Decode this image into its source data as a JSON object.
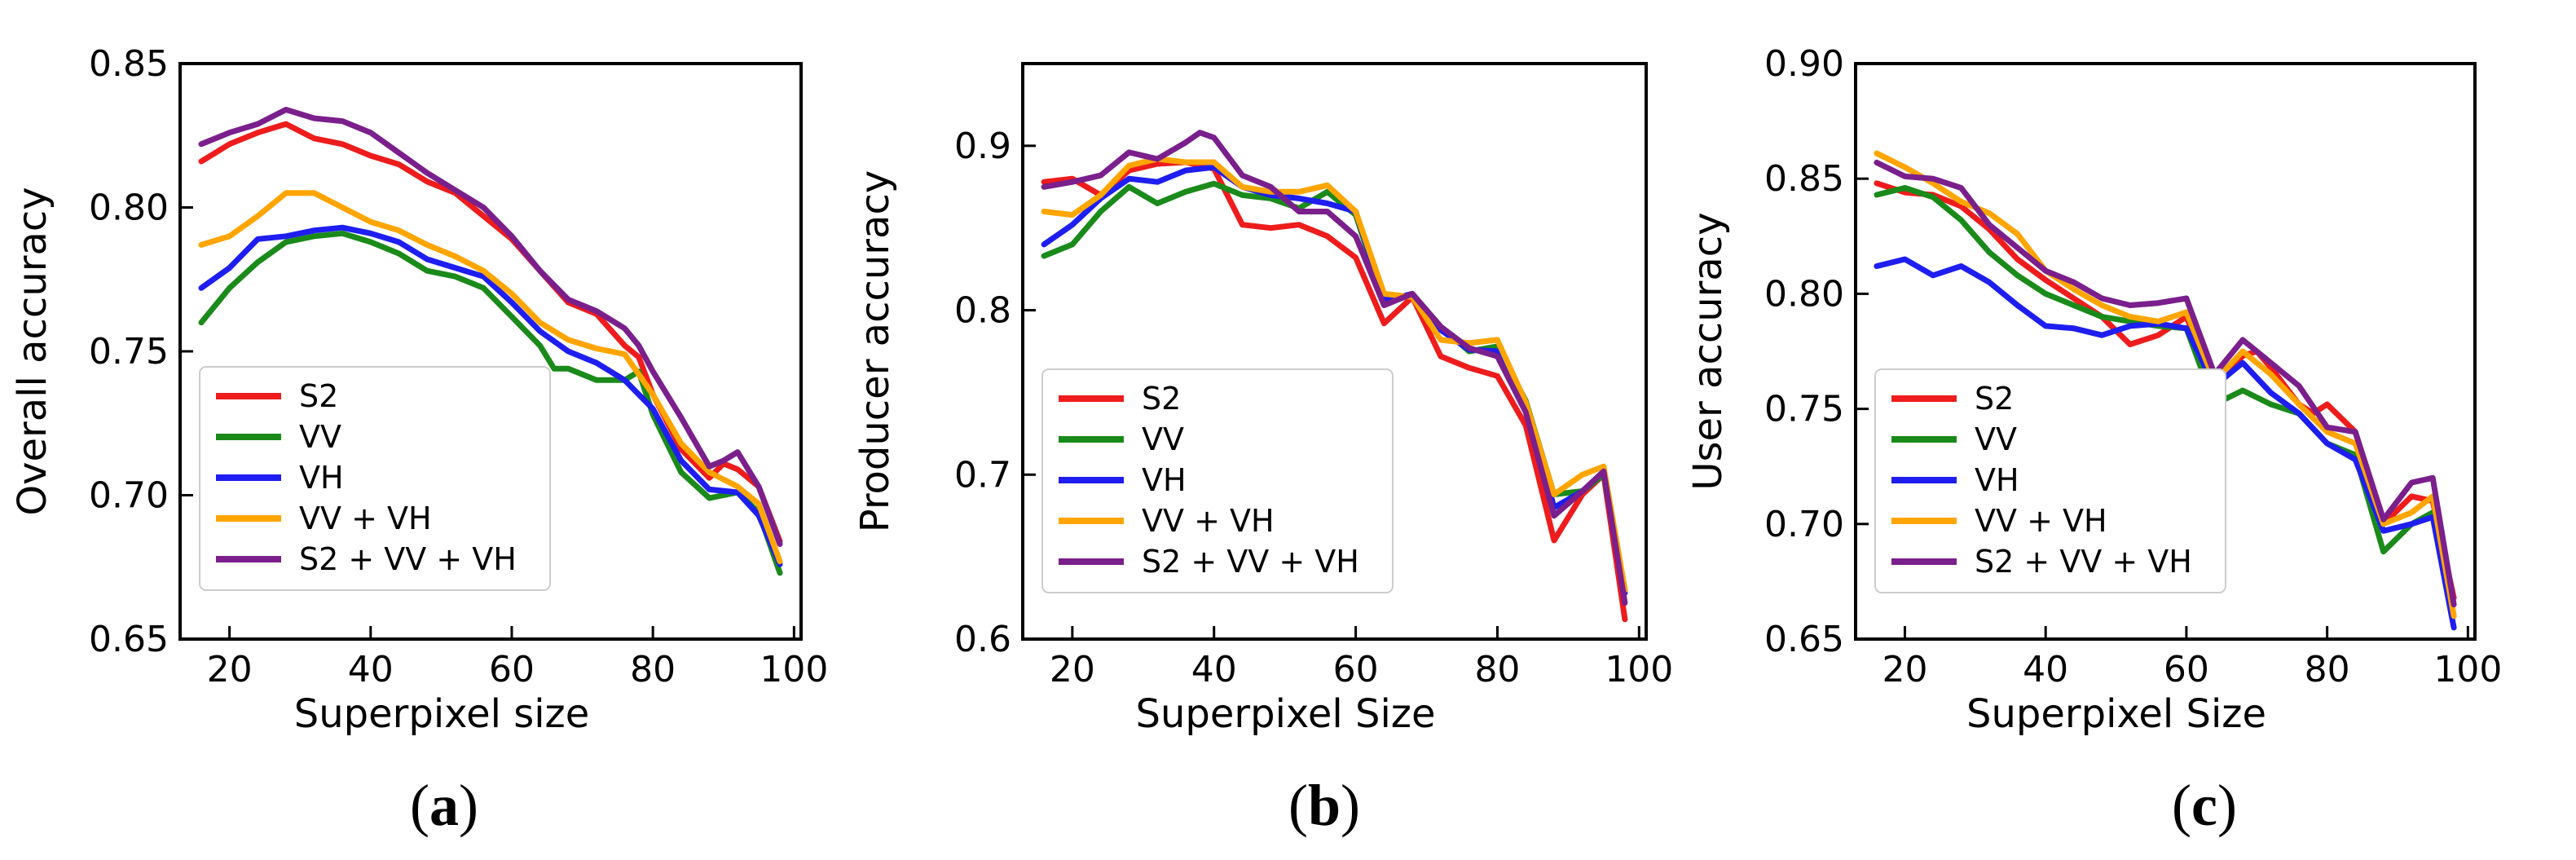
{
  "legend": [
    "S2",
    "VV",
    "VH",
    "VV + VH",
    "S2 + VV + VH"
  ],
  "colors": {
    "S2": "#ee1c1c",
    "VV": "#1a8a1a",
    "VH": "#1e1ef0",
    "VV + VH": "#ffa500",
    "S2 + VV + VH": "#7a1f8c"
  },
  "panels": [
    {
      "open": "(",
      "letter": "a",
      "close": ")",
      "chart_data": {
        "type": "line",
        "xlabel": "Superpixel size",
        "ylabel": "Overall accuracy",
        "xlim": [
          13,
          101
        ],
        "ylim": [
          0.65,
          0.85
        ],
        "xticks": [
          20,
          40,
          60,
          80,
          100
        ],
        "yticks": [
          0.65,
          0.7,
          0.75,
          0.8,
          0.85
        ],
        "ytick_labels": [
          "0.65",
          "0.70",
          "0.75",
          "0.80",
          "0.85"
        ],
        "legend_position": "lower-left",
        "series": [
          {
            "name": "S2",
            "x": [
              16,
              20,
              24,
              28,
              32,
              36,
              40,
              44,
              48,
              52,
              56,
              60,
              64,
              68,
              72,
              76,
              78,
              80,
              84,
              88,
              90,
              92,
              95,
              98
            ],
            "values": [
              0.816,
              0.822,
              0.826,
              0.829,
              0.824,
              0.822,
              0.818,
              0.815,
              0.809,
              0.805,
              0.797,
              0.789,
              0.778,
              0.767,
              0.763,
              0.752,
              0.748,
              0.735,
              0.716,
              0.706,
              0.711,
              0.709,
              0.703,
              0.684
            ]
          },
          {
            "name": "VV",
            "x": [
              16,
              20,
              24,
              28,
              32,
              36,
              40,
              44,
              48,
              52,
              56,
              60,
              64,
              66,
              68,
              72,
              76,
              78,
              80,
              84,
              88,
              92,
              95,
              98
            ],
            "values": [
              0.76,
              0.772,
              0.781,
              0.788,
              0.79,
              0.791,
              0.788,
              0.784,
              0.778,
              0.776,
              0.772,
              0.762,
              0.752,
              0.744,
              0.744,
              0.74,
              0.74,
              0.743,
              0.728,
              0.708,
              0.699,
              0.701,
              0.694,
              0.673
            ]
          },
          {
            "name": "VH",
            "x": [
              16,
              20,
              24,
              28,
              32,
              36,
              40,
              44,
              48,
              52,
              56,
              60,
              64,
              68,
              72,
              76,
              80,
              84,
              88,
              92,
              95,
              98
            ],
            "values": [
              0.772,
              0.779,
              0.789,
              0.79,
              0.792,
              0.793,
              0.791,
              0.788,
              0.782,
              0.779,
              0.776,
              0.767,
              0.757,
              0.75,
              0.746,
              0.74,
              0.73,
              0.712,
              0.702,
              0.701,
              0.693,
              0.676
            ]
          },
          {
            "name": "VV + VH",
            "x": [
              16,
              20,
              24,
              28,
              32,
              36,
              40,
              44,
              48,
              52,
              56,
              60,
              64,
              68,
              72,
              76,
              80,
              84,
              88,
              92,
              95,
              98
            ],
            "values": [
              0.787,
              0.79,
              0.797,
              0.805,
              0.805,
              0.8,
              0.795,
              0.792,
              0.787,
              0.783,
              0.778,
              0.77,
              0.76,
              0.754,
              0.751,
              0.749,
              0.735,
              0.718,
              0.708,
              0.703,
              0.697,
              0.677
            ]
          },
          {
            "name": "S2 + VV + VH",
            "x": [
              16,
              20,
              24,
              28,
              32,
              36,
              40,
              44,
              48,
              52,
              56,
              60,
              64,
              68,
              72,
              76,
              78,
              80,
              84,
              88,
              90,
              92,
              95,
              98
            ],
            "values": [
              0.822,
              0.826,
              0.829,
              0.834,
              0.831,
              0.83,
              0.826,
              0.819,
              0.812,
              0.806,
              0.8,
              0.79,
              0.778,
              0.768,
              0.764,
              0.758,
              0.752,
              0.743,
              0.727,
              0.71,
              0.712,
              0.715,
              0.703,
              0.683
            ]
          }
        ]
      }
    },
    {
      "open": "(",
      "letter": "b",
      "close": ")",
      "chart_data": {
        "type": "line",
        "xlabel": "Superpixel Size",
        "ylabel": "Producer accuracy",
        "xlim": [
          13,
          101
        ],
        "ylim": [
          0.6,
          0.95
        ],
        "xticks": [
          20,
          40,
          60,
          80,
          100
        ],
        "yticks": [
          0.6,
          0.7,
          0.8,
          0.9
        ],
        "ytick_labels": [
          "0.6",
          "0.7",
          "0.8",
          "0.9"
        ],
        "legend_position": "lower-left",
        "series": [
          {
            "name": "S2",
            "x": [
              16,
              20,
              24,
              28,
              32,
              36,
              40,
              44,
              48,
              52,
              56,
              60,
              64,
              68,
              72,
              76,
              80,
              84,
              88,
              92,
              95,
              98
            ],
            "values": [
              0.878,
              0.88,
              0.87,
              0.885,
              0.889,
              0.89,
              0.886,
              0.852,
              0.85,
              0.852,
              0.845,
              0.832,
              0.792,
              0.808,
              0.772,
              0.765,
              0.76,
              0.73,
              0.66,
              0.688,
              0.7,
              0.612
            ]
          },
          {
            "name": "VV",
            "x": [
              16,
              20,
              24,
              28,
              32,
              36,
              40,
              44,
              48,
              52,
              56,
              60,
              64,
              68,
              72,
              76,
              80,
              84,
              88,
              92,
              95,
              98
            ],
            "values": [
              0.833,
              0.84,
              0.86,
              0.875,
              0.865,
              0.872,
              0.877,
              0.87,
              0.868,
              0.862,
              0.872,
              0.858,
              0.805,
              0.81,
              0.79,
              0.775,
              0.778,
              0.745,
              0.688,
              0.69,
              0.7,
              0.63
            ]
          },
          {
            "name": "VH",
            "x": [
              16,
              20,
              24,
              28,
              32,
              36,
              40,
              44,
              48,
              52,
              56,
              60,
              64,
              68,
              72,
              76,
              80,
              84,
              88,
              92,
              95,
              98
            ],
            "values": [
              0.84,
              0.852,
              0.868,
              0.88,
              0.878,
              0.885,
              0.887,
              0.875,
              0.87,
              0.868,
              0.865,
              0.86,
              0.806,
              0.81,
              0.788,
              0.776,
              0.775,
              0.744,
              0.68,
              0.69,
              0.702,
              0.628
            ]
          },
          {
            "name": "VV + VH",
            "x": [
              16,
              20,
              24,
              28,
              32,
              36,
              40,
              44,
              48,
              52,
              56,
              60,
              64,
              68,
              72,
              76,
              80,
              84,
              88,
              92,
              95,
              98
            ],
            "values": [
              0.86,
              0.858,
              0.87,
              0.888,
              0.892,
              0.89,
              0.89,
              0.875,
              0.872,
              0.872,
              0.876,
              0.86,
              0.81,
              0.808,
              0.782,
              0.78,
              0.782,
              0.744,
              0.688,
              0.7,
              0.705,
              0.63
            ]
          },
          {
            "name": "S2 + VV + VH",
            "x": [
              16,
              20,
              24,
              28,
              32,
              36,
              38,
              40,
              44,
              48,
              52,
              56,
              60,
              64,
              68,
              72,
              76,
              80,
              84,
              88,
              92,
              95,
              98
            ],
            "values": [
              0.875,
              0.878,
              0.882,
              0.896,
              0.892,
              0.902,
              0.908,
              0.905,
              0.882,
              0.875,
              0.86,
              0.86,
              0.845,
              0.803,
              0.81,
              0.79,
              0.777,
              0.772,
              0.738,
              0.675,
              0.69,
              0.702,
              0.622
            ]
          }
        ]
      }
    },
    {
      "open": "(",
      "letter": "c",
      "close": ")",
      "chart_data": {
        "type": "line",
        "xlabel": "Superpixel Size",
        "ylabel": "User accuracy",
        "xlim": [
          13,
          101
        ],
        "ylim": [
          0.65,
          0.9
        ],
        "xticks": [
          20,
          40,
          60,
          80,
          100
        ],
        "yticks": [
          0.65,
          0.7,
          0.75,
          0.8,
          0.85,
          0.9
        ],
        "ytick_labels": [
          "0.65",
          "0.70",
          "0.75",
          "0.80",
          "0.85",
          "0.90"
        ],
        "legend_position": "lower-left",
        "series": [
          {
            "name": "S2",
            "x": [
              16,
              20,
              24,
              28,
              32,
              36,
              40,
              44,
              48,
              52,
              56,
              60,
              64,
              68,
              70,
              72,
              76,
              78,
              80,
              84,
              88,
              92,
              95,
              98
            ],
            "values": [
              0.848,
              0.844,
              0.843,
              0.838,
              0.828,
              0.815,
              0.806,
              0.798,
              0.79,
              0.778,
              0.782,
              0.79,
              0.76,
              0.773,
              0.775,
              0.768,
              0.752,
              0.748,
              0.752,
              0.74,
              0.7,
              0.712,
              0.71,
              0.668
            ]
          },
          {
            "name": "VV",
            "x": [
              16,
              20,
              24,
              28,
              32,
              36,
              40,
              44,
              48,
              52,
              56,
              60,
              64,
              68,
              72,
              76,
              80,
              84,
              88,
              92,
              95,
              98
            ],
            "values": [
              0.843,
              0.846,
              0.842,
              0.832,
              0.818,
              0.808,
              0.8,
              0.795,
              0.79,
              0.788,
              0.786,
              0.785,
              0.752,
              0.758,
              0.752,
              0.748,
              0.735,
              0.73,
              0.688,
              0.7,
              0.705,
              0.66
            ]
          },
          {
            "name": "VH",
            "x": [
              16,
              20,
              24,
              28,
              32,
              36,
              40,
              44,
              48,
              52,
              56,
              60,
              64,
              68,
              72,
              76,
              80,
              84,
              88,
              92,
              95,
              98
            ],
            "values": [
              0.812,
              0.815,
              0.808,
              0.812,
              0.805,
              0.795,
              0.786,
              0.785,
              0.782,
              0.786,
              0.787,
              0.785,
              0.76,
              0.77,
              0.757,
              0.748,
              0.735,
              0.728,
              0.697,
              0.7,
              0.703,
              0.655
            ]
          },
          {
            "name": "VV + VH",
            "x": [
              16,
              20,
              24,
              28,
              32,
              36,
              40,
              44,
              48,
              52,
              56,
              60,
              64,
              68,
              72,
              76,
              80,
              84,
              88,
              92,
              95,
              98
            ],
            "values": [
              0.861,
              0.855,
              0.848,
              0.84,
              0.835,
              0.826,
              0.81,
              0.802,
              0.795,
              0.79,
              0.788,
              0.792,
              0.762,
              0.775,
              0.765,
              0.752,
              0.74,
              0.735,
              0.7,
              0.705,
              0.712,
              0.66
            ]
          },
          {
            "name": "S2 + VV + VH",
            "x": [
              16,
              20,
              24,
              28,
              32,
              36,
              40,
              44,
              48,
              52,
              56,
              60,
              64,
              68,
              72,
              76,
              80,
              84,
              88,
              92,
              95,
              98
            ],
            "values": [
              0.857,
              0.851,
              0.85,
              0.846,
              0.83,
              0.82,
              0.81,
              0.805,
              0.798,
              0.795,
              0.796,
              0.798,
              0.765,
              0.78,
              0.77,
              0.76,
              0.742,
              0.74,
              0.702,
              0.718,
              0.72,
              0.665
            ]
          }
        ]
      }
    }
  ]
}
